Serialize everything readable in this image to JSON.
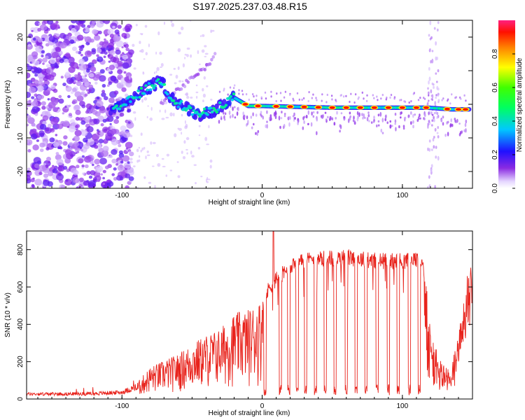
{
  "chart_data": [
    {
      "type": "heatmap",
      "title": "S197.2025.237.03.48.R15",
      "xlabel": "Height of straight line (km)",
      "ylabel": "Frequency (Hz)",
      "xlim": [
        -168,
        150
      ],
      "ylim": [
        -25,
        25
      ],
      "xticks": [
        -100,
        0,
        100
      ],
      "yticks": [
        -20,
        -10,
        0,
        10,
        20
      ],
      "xtick_labels": [
        "-100",
        "0",
        "100"
      ],
      "ytick_labels": [
        "-20",
        "-10",
        "0",
        "10",
        "20"
      ],
      "colorbar": {
        "label": "Normalized spectral amplitude",
        "range": [
          0,
          1
        ],
        "ticks": [
          "0.0",
          "0.2",
          "0.4",
          "0.6",
          "0.8"
        ],
        "tick_values": [
          0,
          0.2,
          0.4,
          0.6,
          0.8
        ]
      },
      "track": [
        {
          "x": -105,
          "f": -2
        },
        {
          "x": -95,
          "f": 1
        },
        {
          "x": -85,
          "f": 4
        },
        {
          "x": -72,
          "f": 7
        },
        {
          "x": -65,
          "f": 2
        },
        {
          "x": -55,
          "f": -1
        },
        {
          "x": -45,
          "f": -3
        },
        {
          "x": -35,
          "f": -2
        },
        {
          "x": -25,
          "f": 1
        },
        {
          "x": -20,
          "f": 2
        },
        {
          "x": -10,
          "f": -0.5
        },
        {
          "x": 0,
          "f": -0.5
        },
        {
          "x": 50,
          "f": -1
        },
        {
          "x": 100,
          "f": -1
        },
        {
          "x": 118,
          "f": -1
        },
        {
          "x": 135,
          "f": -1.5
        },
        {
          "x": 148,
          "f": -1.5
        }
      ],
      "side_track": [
        {
          "x": -70,
          "f": 1
        },
        {
          "x": -55,
          "f": 6
        },
        {
          "x": -40,
          "f": 11
        },
        {
          "x": -33,
          "f": 15
        }
      ],
      "bright_peaks_x": [
        -12,
        -3,
        10,
        20,
        30,
        40,
        50,
        60,
        70,
        80,
        90,
        100,
        110,
        117,
        132,
        140,
        145
      ]
    },
    {
      "type": "line",
      "xlabel": "Height of straight line (km)",
      "ylabel": "SNR (10 * v/v)",
      "xlim": [
        -168,
        150
      ],
      "ylim": [
        0,
        900
      ],
      "xticks": [
        -100,
        0,
        100
      ],
      "yticks": [
        0,
        200,
        400,
        600,
        800
      ],
      "xtick_labels": [
        "-100",
        "0",
        "100"
      ],
      "ytick_labels": [
        "0",
        "200",
        "400",
        "600",
        "800"
      ],
      "color": "#e8231c",
      "envelope": [
        {
          "x": -168,
          "y": 30
        },
        {
          "x": -140,
          "y": 30
        },
        {
          "x": -120,
          "y": 32
        },
        {
          "x": -100,
          "y": 40
        },
        {
          "x": -90,
          "y": 70
        },
        {
          "x": -80,
          "y": 150
        },
        {
          "x": -60,
          "y": 210
        },
        {
          "x": -50,
          "y": 260
        },
        {
          "x": -40,
          "y": 300
        },
        {
          "x": -30,
          "y": 330
        },
        {
          "x": -20,
          "y": 400
        },
        {
          "x": -10,
          "y": 420
        },
        {
          "x": 0,
          "y": 470
        },
        {
          "x": 5,
          "y": 600
        },
        {
          "x": 10,
          "y": 640
        },
        {
          "x": 20,
          "y": 700
        },
        {
          "x": 30,
          "y": 740
        },
        {
          "x": 40,
          "y": 750
        },
        {
          "x": 60,
          "y": 760
        },
        {
          "x": 80,
          "y": 740
        },
        {
          "x": 100,
          "y": 740
        },
        {
          "x": 115,
          "y": 740
        },
        {
          "x": 118,
          "y": 300
        },
        {
          "x": 125,
          "y": 150
        },
        {
          "x": 135,
          "y": 90
        },
        {
          "x": 140,
          "y": 300
        },
        {
          "x": 145,
          "y": 520
        },
        {
          "x": 150,
          "y": 640
        }
      ],
      "dropout_x": [
        2,
        13,
        19,
        25,
        31,
        38,
        45,
        52,
        60,
        67,
        74,
        82,
        90,
        97,
        105,
        112
      ],
      "spike": {
        "x": 8,
        "y": 900
      }
    }
  ]
}
